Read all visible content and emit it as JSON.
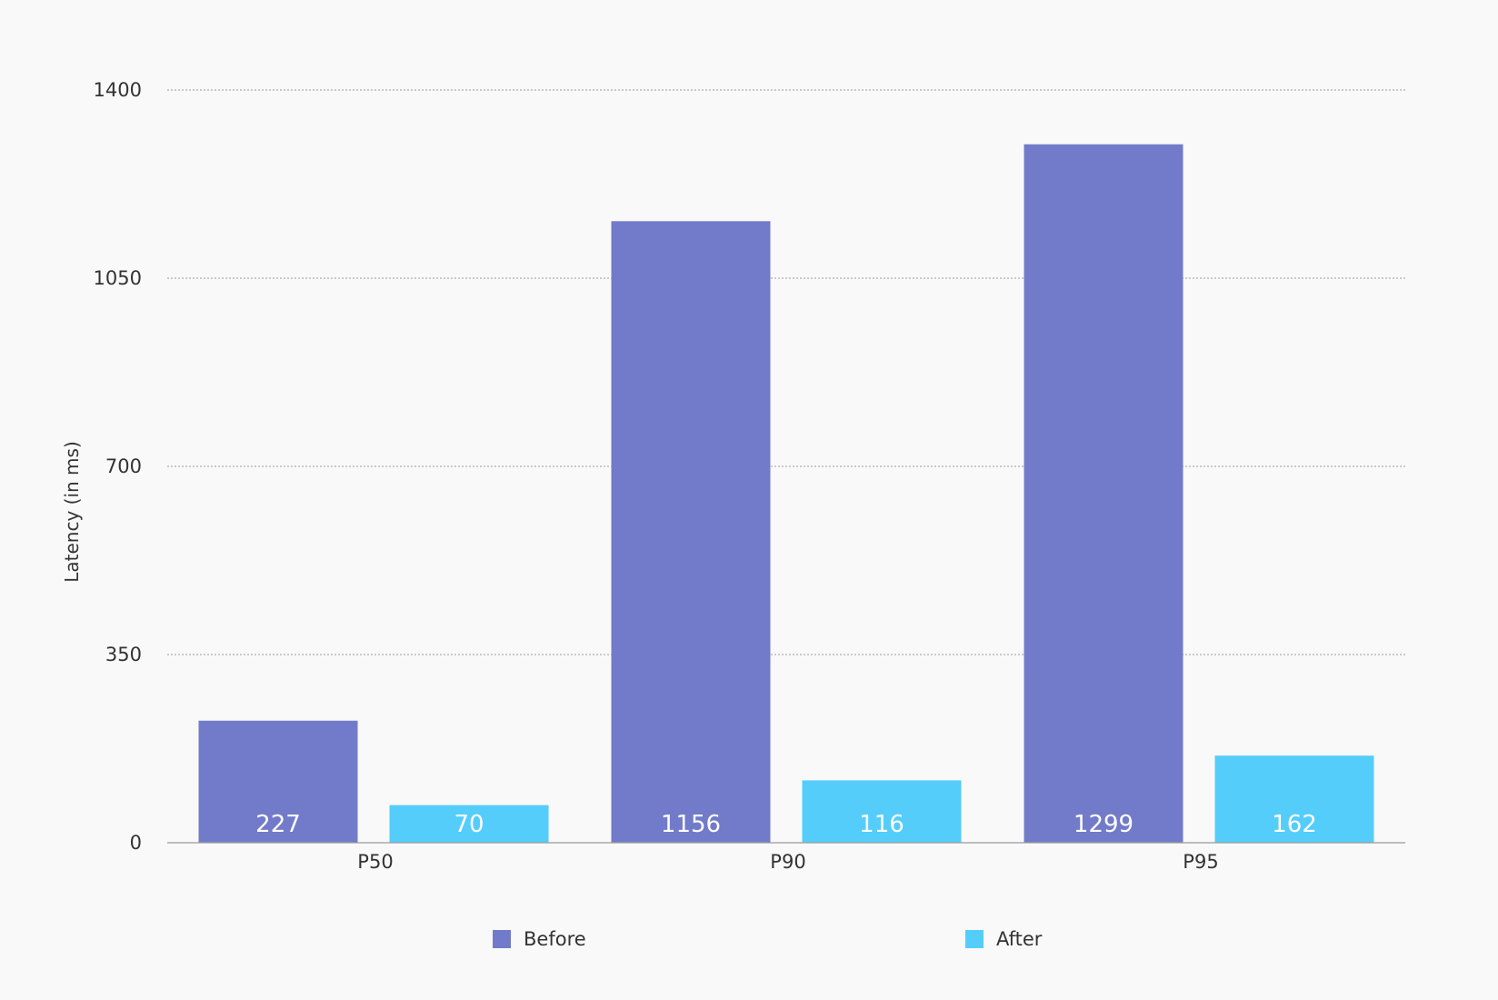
{
  "chart_data": {
    "type": "bar",
    "categories": [
      "P50",
      "P90",
      "P95"
    ],
    "series": [
      {
        "name": "Before",
        "values": [
          227,
          1156,
          1299
        ],
        "color": "#727bc9"
      },
      {
        "name": "After",
        "values": [
          70,
          116,
          162
        ],
        "color": "#55cdfb"
      }
    ],
    "ylabel": "Latency (in ms)",
    "xlabel": "",
    "ylim": [
      0,
      1400
    ],
    "yticks": [
      "0",
      "350",
      "700",
      "1050",
      "1400"
    ],
    "ytick_values": [
      0,
      350,
      700,
      1050,
      1400
    ],
    "grid": true,
    "legend_position": "bottom-center",
    "value_labels": true
  }
}
